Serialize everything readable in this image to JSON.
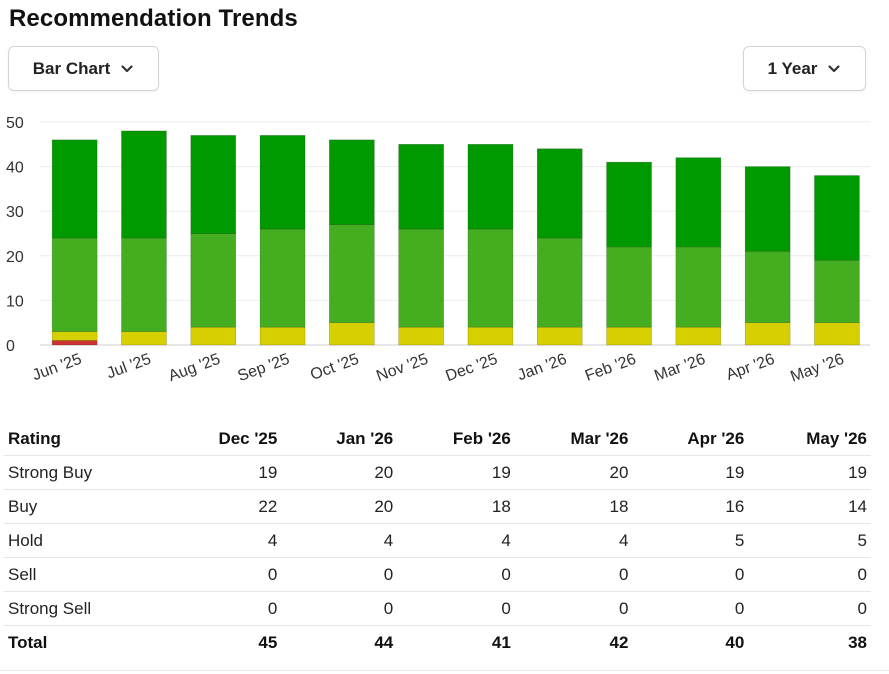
{
  "title": "Recommendation Trends",
  "controls": {
    "chart_type": "Bar Chart",
    "range": "1 Year"
  },
  "icons": {
    "chart_type_chevron": "chevron-down-icon",
    "range_chevron": "chevron-down-icon"
  },
  "colors": {
    "strong_buy": "#009900",
    "buy": "#44ad20",
    "hold": "#d6d000",
    "sell": "#e07000",
    "strong_sell": "#cc3333"
  },
  "chart_data": {
    "type": "bar",
    "stacked": true,
    "categories": [
      "Jun '25",
      "Jul '25",
      "Aug '25",
      "Sep '25",
      "Oct '25",
      "Nov '25",
      "Dec '25",
      "Jan '26",
      "Feb '26",
      "Mar '26",
      "Apr '26",
      "May '26"
    ],
    "series": [
      {
        "key": "strong_sell",
        "values": [
          1,
          0,
          0,
          0,
          0,
          0,
          0,
          0,
          0,
          0,
          0,
          0
        ]
      },
      {
        "key": "sell",
        "values": [
          0,
          0,
          0,
          0,
          0,
          0,
          0,
          0,
          0,
          0,
          0,
          0
        ]
      },
      {
        "key": "hold",
        "values": [
          2,
          3,
          4,
          4,
          5,
          4,
          4,
          4,
          4,
          4,
          5,
          5
        ]
      },
      {
        "key": "buy",
        "values": [
          21,
          21,
          21,
          22,
          22,
          22,
          22,
          20,
          18,
          18,
          16,
          14
        ]
      },
      {
        "key": "strong_buy",
        "values": [
          22,
          24,
          22,
          21,
          19,
          19,
          19,
          20,
          19,
          20,
          19,
          19
        ]
      }
    ],
    "ylim": [
      0,
      50
    ],
    "yticks": [
      0,
      10,
      20,
      30,
      40,
      50
    ],
    "grid": true,
    "legend": "none"
  },
  "table": {
    "headers": [
      "Rating",
      "Dec '25",
      "Jan '26",
      "Feb '26",
      "Mar '26",
      "Apr '26",
      "May '26"
    ],
    "rows": [
      {
        "label": "Strong Buy",
        "values": [
          "19",
          "20",
          "19",
          "20",
          "19",
          "19"
        ]
      },
      {
        "label": "Buy",
        "values": [
          "22",
          "20",
          "18",
          "18",
          "16",
          "14"
        ]
      },
      {
        "label": "Hold",
        "values": [
          "4",
          "4",
          "4",
          "4",
          "5",
          "5"
        ]
      },
      {
        "label": "Sell",
        "values": [
          "0",
          "0",
          "0",
          "0",
          "0",
          "0"
        ]
      },
      {
        "label": "Strong Sell",
        "values": [
          "0",
          "0",
          "0",
          "0",
          "0",
          "0"
        ]
      }
    ],
    "total": {
      "label": "Total",
      "values": [
        "45",
        "44",
        "41",
        "42",
        "40",
        "38"
      ]
    }
  }
}
